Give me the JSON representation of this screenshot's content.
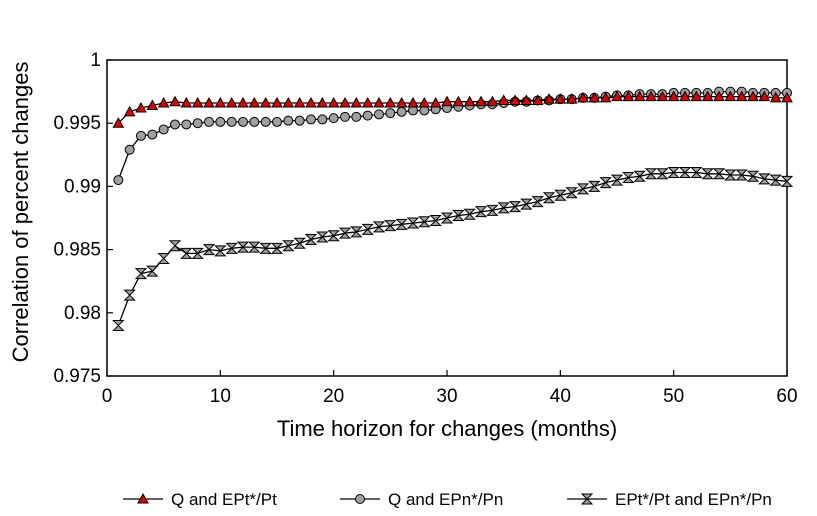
{
  "chart_data": {
    "type": "line",
    "xlabel": "Time horizon for changes (months)",
    "ylabel": "Correlation of percent changes",
    "xlim": [
      0,
      60
    ],
    "ylim": [
      0.975,
      1
    ],
    "xticks": [
      0,
      10,
      20,
      30,
      40,
      50,
      60
    ],
    "yticks": [
      0.975,
      0.98,
      0.985,
      0.99,
      0.995,
      1
    ],
    "ytick_labels": [
      "0.975",
      "0.98",
      "0.985",
      "0.99",
      "0.995",
      "1"
    ],
    "grid": false,
    "legend_position": "bottom",
    "x": [
      1,
      2,
      3,
      4,
      5,
      6,
      7,
      8,
      9,
      10,
      11,
      12,
      13,
      14,
      15,
      16,
      17,
      18,
      19,
      20,
      21,
      22,
      23,
      24,
      25,
      26,
      27,
      28,
      29,
      30,
      31,
      32,
      33,
      34,
      35,
      36,
      37,
      38,
      39,
      40,
      41,
      42,
      43,
      44,
      45,
      46,
      47,
      48,
      49,
      50,
      51,
      52,
      53,
      54,
      55,
      56,
      57,
      58,
      59,
      60
    ],
    "series": [
      {
        "name": "Q and EPt*/Pt",
        "marker": "triangle",
        "color": "#e00000",
        "values": [
          0.995,
          0.9959,
          0.9962,
          0.9964,
          0.9966,
          0.9967,
          0.9966,
          0.9966,
          0.9966,
          0.9966,
          0.9966,
          0.9966,
          0.9966,
          0.9966,
          0.9966,
          0.9966,
          0.9966,
          0.9966,
          0.9966,
          0.9966,
          0.9966,
          0.9966,
          0.9966,
          0.9966,
          0.9966,
          0.9966,
          0.9966,
          0.9966,
          0.9966,
          0.9967,
          0.9967,
          0.9967,
          0.9967,
          0.9967,
          0.9968,
          0.9968,
          0.9968,
          0.9968,
          0.9969,
          0.9969,
          0.9969,
          0.997,
          0.997,
          0.997,
          0.9971,
          0.9971,
          0.9971,
          0.9971,
          0.9971,
          0.9971,
          0.9971,
          0.9971,
          0.9971,
          0.9971,
          0.9971,
          0.9971,
          0.9971,
          0.9971,
          0.997,
          0.997
        ]
      },
      {
        "name": "Q and EPn*/Pn",
        "marker": "circle",
        "color": "#a0a0a0",
        "values": [
          0.9905,
          0.9929,
          0.994,
          0.9941,
          0.9945,
          0.9949,
          0.9949,
          0.995,
          0.9951,
          0.9951,
          0.9951,
          0.9951,
          0.9951,
          0.9951,
          0.9951,
          0.9952,
          0.9952,
          0.9953,
          0.9953,
          0.9954,
          0.9955,
          0.9955,
          0.9956,
          0.9957,
          0.9958,
          0.9959,
          0.996,
          0.996,
          0.9961,
          0.9962,
          0.9963,
          0.9964,
          0.9965,
          0.9965,
          0.9966,
          0.9967,
          0.9967,
          0.9968,
          0.9968,
          0.9969,
          0.9969,
          0.997,
          0.997,
          0.9971,
          0.9972,
          0.9972,
          0.9973,
          0.9973,
          0.9973,
          0.9974,
          0.9974,
          0.9974,
          0.9974,
          0.9975,
          0.9975,
          0.9975,
          0.9974,
          0.9974,
          0.9974,
          0.9974
        ]
      },
      {
        "name": "EPt*/Pt and EPn*/Pn",
        "marker": "hourglass",
        "color": "#a0a0a0",
        "values": [
          0.979,
          0.9814,
          0.9831,
          0.9833,
          0.9843,
          0.9853,
          0.9847,
          0.9847,
          0.985,
          0.9849,
          0.9851,
          0.9852,
          0.9852,
          0.9851,
          0.9851,
          0.9853,
          0.9855,
          0.9858,
          0.986,
          0.9861,
          0.9863,
          0.9864,
          0.9866,
          0.9868,
          0.9869,
          0.987,
          0.9871,
          0.9872,
          0.9873,
          0.9875,
          0.9877,
          0.9878,
          0.988,
          0.9881,
          0.9883,
          0.9884,
          0.9886,
          0.9888,
          0.9891,
          0.9893,
          0.9895,
          0.9898,
          0.99,
          0.9903,
          0.9905,
          0.9907,
          0.9908,
          0.991,
          0.991,
          0.9911,
          0.9911,
          0.9911,
          0.991,
          0.991,
          0.9909,
          0.9909,
          0.9908,
          0.9906,
          0.9905,
          0.9904
        ]
      }
    ]
  }
}
